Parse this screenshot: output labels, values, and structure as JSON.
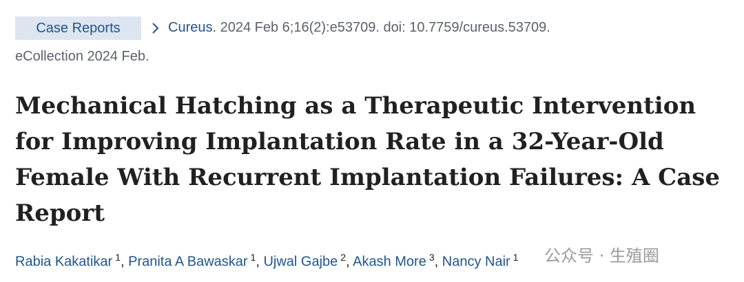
{
  "header": {
    "type": "Case Reports",
    "journal": "Cureus.",
    "citation": "2024 Feb 6;16(2):e53709. doi: 10.7759/cureus.53709.",
    "ecollection": "eCollection 2024 Feb."
  },
  "title": "Mechanical Hatching as a Therapeutic Intervention for Improving Implantation Rate in a 32-Year-Old Female With Recurrent Implantation Failures: A Case Report",
  "authors": [
    {
      "name": "Rabia Kakatikar",
      "aff": "1"
    },
    {
      "name": "Pranita A Bawaskar",
      "aff": "1"
    },
    {
      "name": "Ujwal Gajbe",
      "aff": "2"
    },
    {
      "name": "Akash More",
      "aff": "3"
    },
    {
      "name": "Nancy Nair",
      "aff": "1"
    }
  ],
  "watermark": "公众号 · 生殖圈"
}
